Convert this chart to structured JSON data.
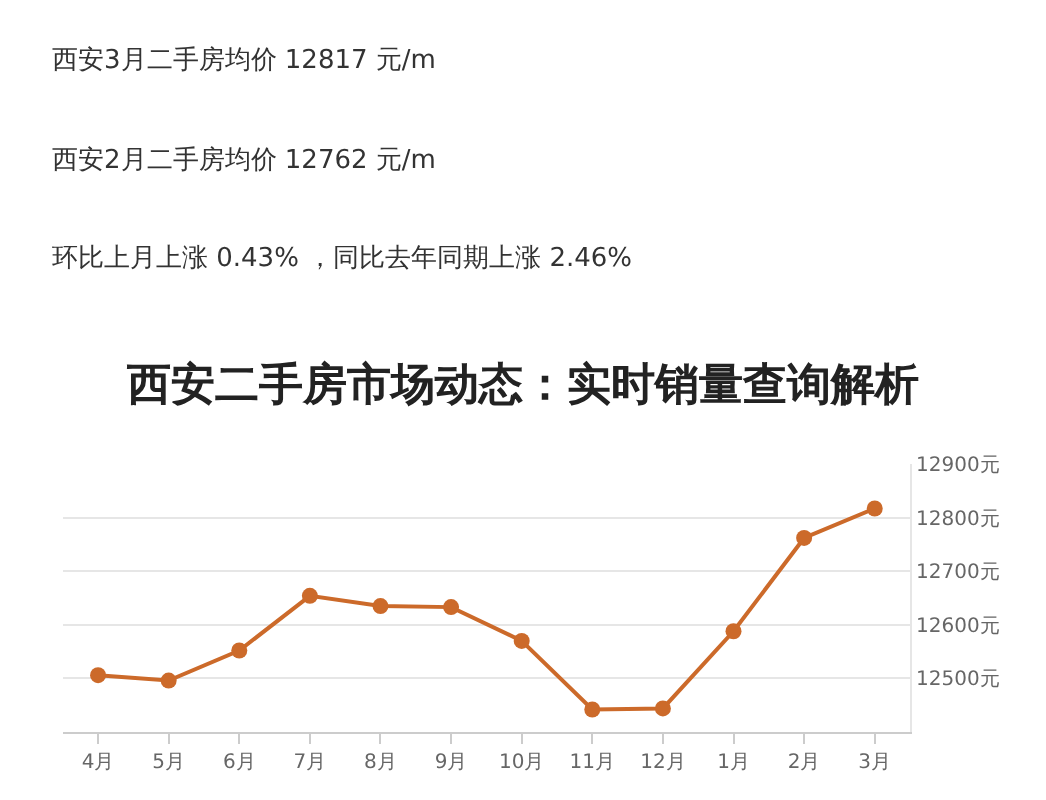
{
  "chart_data": {
    "type": "line",
    "title": "西安二手房市场动态：实时销量查询解析",
    "annotations": [
      "西安3月二手房均价 12817 元/m",
      "西安2月二手房均价 12762 元/m",
      "环比上月上涨 0.43% ，同比去年同期上涨 2.46%"
    ],
    "categories": [
      "4月",
      "5月",
      "6月",
      "7月",
      "8月",
      "9月",
      "10月",
      "11月",
      "12月",
      "1月",
      "2月",
      "3月"
    ],
    "series": [
      {
        "color": "#cc6a2a",
        "values": [
          12506,
          12496,
          12552,
          12654,
          12635,
          12633,
          12570,
          12442,
          12444,
          12588,
          12762,
          12817
        ]
      }
    ],
    "ylim": [
      12400,
      12900
    ],
    "yticks": [
      {
        "value": 12500,
        "label": "12500元"
      },
      {
        "value": 12600,
        "label": "12600元"
      },
      {
        "value": 12700,
        "label": "12700元"
      },
      {
        "value": 12800,
        "label": "12800元"
      },
      {
        "value": 12900,
        "label": "12900元"
      }
    ],
    "grid": "y",
    "marker": "circle",
    "line_style": "solid"
  }
}
